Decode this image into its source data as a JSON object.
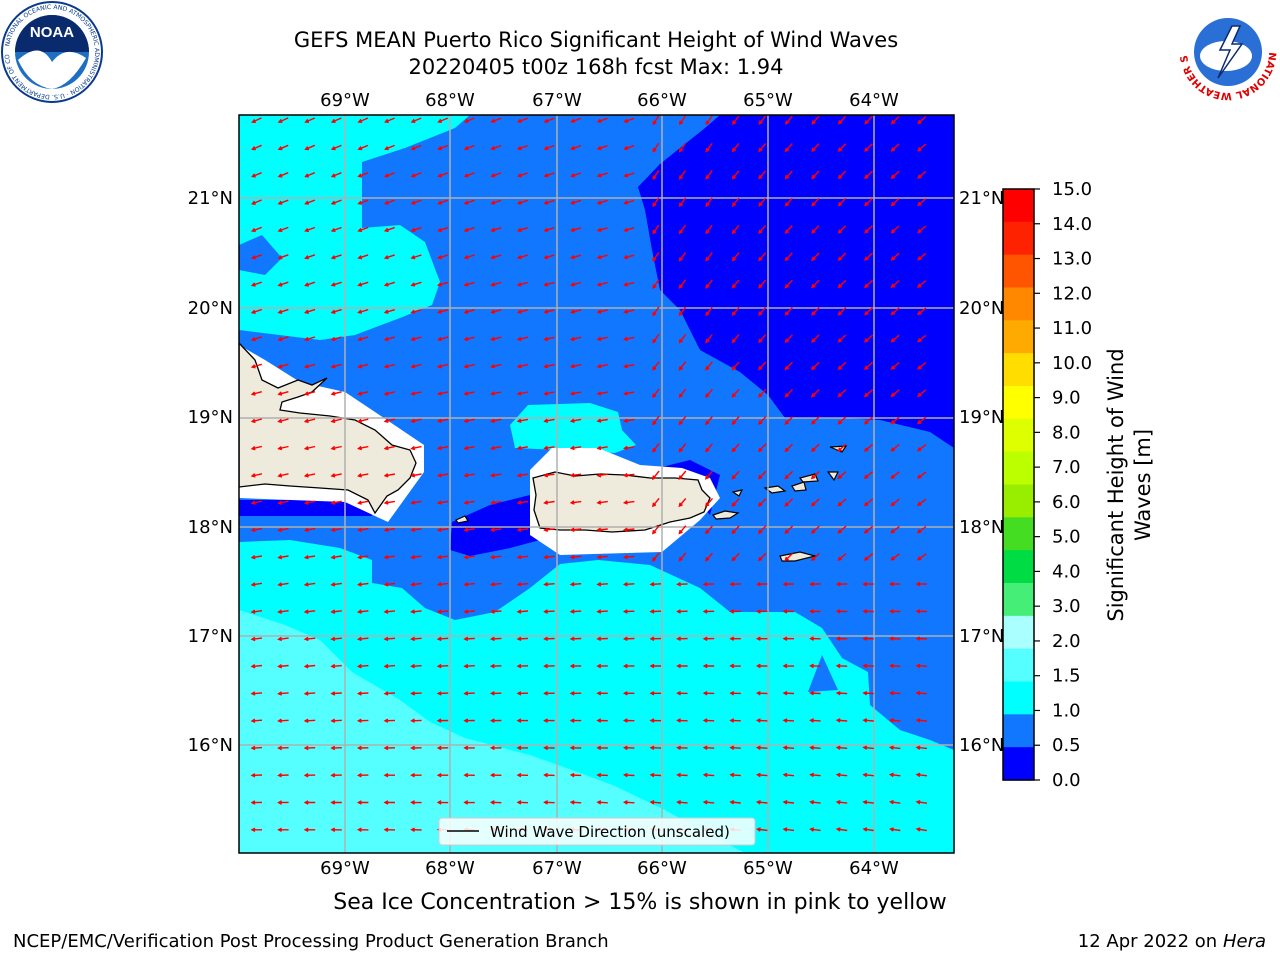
{
  "header": {
    "title_line1": "GEFS MEAN Puerto Rico Significant Height of Wind Waves",
    "title_line2": "20220405 t00z 168h fcst   Max: 1.94"
  },
  "logos": {
    "left": "NOAA",
    "left_ring": "NATIONAL OCEANIC AND ATMOSPHERIC ADMINISTRATION · U.S. DEPARTMENT OF COMMERCE",
    "right_ring": "NATIONAL WEATHER SERVICE"
  },
  "map": {
    "lon_ticks": [
      "69°W",
      "68°W",
      "67°W",
      "66°W",
      "65°W",
      "64°W"
    ],
    "lat_ticks": [
      "21°N",
      "20°N",
      "19°N",
      "18°N",
      "17°N",
      "16°N"
    ],
    "legend_label": "Wind Wave Direction (unscaled)",
    "arrow_color": "#ff0000"
  },
  "colorbar": {
    "label_line1": "Significant Height of Wind",
    "label_line2": "Waves [m]",
    "ticks": [
      "15.0",
      "14.0",
      "13.0",
      "12.0",
      "11.0",
      "10.0",
      "9.0",
      "8.0",
      "7.0",
      "6.0",
      "5.0",
      "4.0",
      "3.0",
      "2.0",
      "1.5",
      "1.0",
      "0.5",
      "0.0"
    ],
    "colors": [
      "#ff0000",
      "#ff2200",
      "#ff5500",
      "#ff8800",
      "#ffaa00",
      "#ffdd00",
      "#ffff00",
      "#ddff00",
      "#bbff00",
      "#99ee00",
      "#44dd22",
      "#00dd44",
      "#44ee77",
      "#aaffff",
      "#55ffff",
      "#00ffff",
      "#1177ff",
      "#0000ff"
    ]
  },
  "footer": {
    "sea_ice_note": "Sea Ice Concentration > 15% is shown in pink to yellow",
    "left": "NCEP/EMC/Verification Post Processing Product Generation Branch",
    "right_date": "12 Apr 2022 on",
    "right_machine": "Hera"
  }
}
